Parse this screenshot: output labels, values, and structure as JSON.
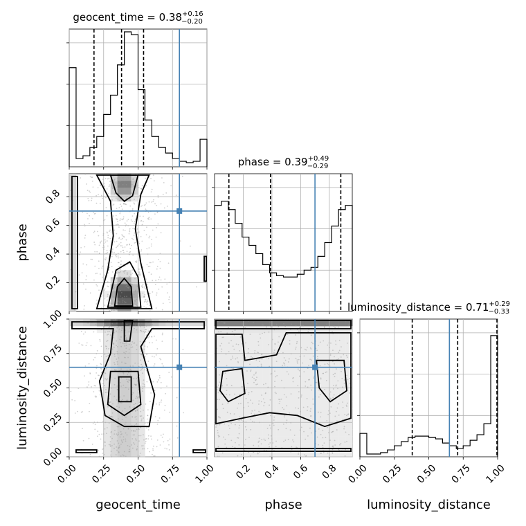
{
  "chart_data": {
    "type": "corner",
    "parameters": [
      {
        "name": "geocent_time",
        "label": "geocent_time",
        "range": [
          0.0,
          1.0
        ],
        "title": {
          "prefix": "geocent_time = 0.38",
          "sup": "+0.16",
          "sub": "−0.20"
        },
        "median": 0.38,
        "quantiles": [
          0.18,
          0.38,
          0.54
        ],
        "truth": 0.8,
        "ticks": [
          "0.00",
          "0.25",
          "0.50",
          "0.75",
          "1.00"
        ],
        "tick_values": [
          0.0,
          0.25,
          0.5,
          0.75,
          1.0
        ],
        "hist": [
          0.72,
          0.06,
          0.08,
          0.14,
          0.22,
          0.38,
          0.52,
          0.74,
          0.98,
          0.96,
          0.56,
          0.34,
          0.22,
          0.14,
          0.1,
          0.06,
          0.04,
          0.03,
          0.04,
          0.2
        ]
      },
      {
        "name": "phase",
        "label": "phase",
        "range": [
          0.0,
          0.96
        ],
        "title": {
          "prefix": "phase = 0.39",
          "sup": "+0.49",
          "sub": "−0.29"
        },
        "median": 0.39,
        "quantiles": [
          0.1,
          0.39,
          0.88
        ],
        "truth": 0.7,
        "ticks": [
          "0.2",
          "0.4",
          "0.6",
          "0.8"
        ],
        "tick_values": [
          0.2,
          0.4,
          0.6,
          0.8
        ],
        "hist": [
          0.77,
          0.8,
          0.74,
          0.64,
          0.54,
          0.48,
          0.42,
          0.34,
          0.28,
          0.26,
          0.25,
          0.25,
          0.27,
          0.3,
          0.32,
          0.4,
          0.5,
          0.62,
          0.74,
          0.77
        ]
      },
      {
        "name": "luminosity_distance",
        "label": "luminosity_distance",
        "range": [
          0.0,
          1.0
        ],
        "title": {
          "prefix": "luminosity_distance = 0.71",
          "sup": "+0.29",
          "sub": "−0.33"
        },
        "median": 0.71,
        "quantiles": [
          0.38,
          0.71,
          1.0
        ],
        "truth": 0.65,
        "ticks": [
          "0.00",
          "0.25",
          "0.50",
          "0.75",
          "1.00"
        ],
        "tick_values": [
          0.0,
          0.25,
          0.5,
          0.75,
          1.0
        ],
        "hist": [
          0.17,
          0.02,
          0.02,
          0.03,
          0.05,
          0.08,
          0.11,
          0.14,
          0.15,
          0.15,
          0.14,
          0.13,
          0.1,
          0.08,
          0.06,
          0.08,
          0.12,
          0.16,
          0.24,
          0.88
        ]
      }
    ],
    "y_tick_labels": {
      "phase": [
        "0.2",
        "0.4",
        "0.6",
        "0.8"
      ],
      "luminosity_distance": [
        "0.00",
        "0.25",
        "0.50",
        "0.75",
        "1.00"
      ]
    },
    "truth_point_color": "#4682b4",
    "grid": true
  }
}
